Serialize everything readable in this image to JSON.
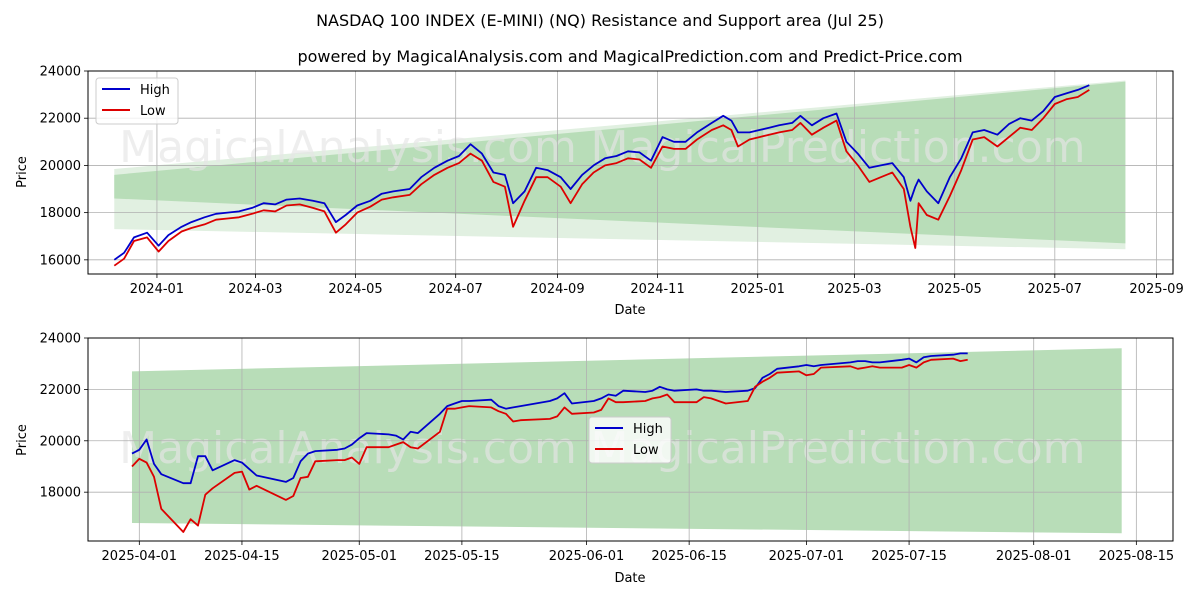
{
  "title": "NASDAQ 100 INDEX (E-MINI) (NQ) Resistance and Support area (Jul 25)",
  "subtitle": "powered by MagicalAnalysis.com and MagicalPrediction.com and Predict-Price.com",
  "watermarks": [
    "MagicalAnalysis.com",
    "MagicalPrediction.com"
  ],
  "colors": {
    "high": "#0000cc",
    "low": "#dd0000",
    "band_dark": "#b8ddb8",
    "band_light": "#e1f0e1",
    "grid": "#b0b0b0"
  },
  "chart_data": [
    {
      "type": "line",
      "xlabel": "Date",
      "ylabel": "Price",
      "ylim": [
        15400,
        24000
      ],
      "xlim": [
        "2023-11-20",
        "2025-09-11"
      ],
      "yticks": [
        16000,
        18000,
        20000,
        22000,
        24000
      ],
      "xticks": [
        "2024-01",
        "2024-03",
        "2024-05",
        "2024-07",
        "2024-09",
        "2024-11",
        "2025-01",
        "2025-03",
        "2025-05",
        "2025-07",
        "2025-09"
      ],
      "grid": true,
      "legend": "top-left",
      "legend_entries": [
        "High",
        "Low"
      ],
      "band_outer": {
        "start": "2023-12-06",
        "end": "2025-08-13",
        "upper": [
          19850,
          23600
        ],
        "lower": [
          17300,
          16450
        ]
      },
      "band_inner": {
        "start": "2023-12-06",
        "end": "2025-08-13",
        "upper": [
          19600,
          23550
        ],
        "lower": [
          18600,
          16700
        ]
      },
      "series": [
        {
          "name": "High",
          "x": [
            "2023-12-06",
            "2023-12-12",
            "2023-12-18",
            "2023-12-26",
            "2024-01-02",
            "2024-01-08",
            "2024-01-16",
            "2024-01-22",
            "2024-01-30",
            "2024-02-06",
            "2024-02-13",
            "2024-02-20",
            "2024-02-28",
            "2024-03-06",
            "2024-03-13",
            "2024-03-20",
            "2024-03-28",
            "2024-04-05",
            "2024-04-12",
            "2024-04-19",
            "2024-04-25",
            "2024-05-02",
            "2024-05-10",
            "2024-05-17",
            "2024-05-24",
            "2024-06-03",
            "2024-06-10",
            "2024-06-18",
            "2024-06-26",
            "2024-07-03",
            "2024-07-10",
            "2024-07-17",
            "2024-07-24",
            "2024-07-31",
            "2024-08-05",
            "2024-08-12",
            "2024-08-19",
            "2024-08-26",
            "2024-09-03",
            "2024-09-09",
            "2024-09-16",
            "2024-09-23",
            "2024-09-30",
            "2024-10-07",
            "2024-10-14",
            "2024-10-21",
            "2024-10-28",
            "2024-11-04",
            "2024-11-11",
            "2024-11-18",
            "2024-11-25",
            "2024-12-04",
            "2024-12-11",
            "2024-12-16",
            "2024-12-20",
            "2024-12-27",
            "2025-01-02",
            "2025-01-08",
            "2025-01-14",
            "2025-01-22",
            "2025-01-27",
            "2025-02-03",
            "2025-02-10",
            "2025-02-18",
            "2025-02-24",
            "2025-03-03",
            "2025-03-10",
            "2025-03-17",
            "2025-03-24",
            "2025-03-31",
            "2025-04-04",
            "2025-04-07",
            "2025-04-09",
            "2025-04-14",
            "2025-04-21",
            "2025-04-28",
            "2025-05-05",
            "2025-05-12",
            "2025-05-19",
            "2025-05-27",
            "2025-06-03",
            "2025-06-10",
            "2025-06-17",
            "2025-06-24",
            "2025-07-01",
            "2025-07-08",
            "2025-07-15",
            "2025-07-22"
          ],
          "values": [
            16000,
            16300,
            16950,
            17150,
            16600,
            17050,
            17400,
            17600,
            17800,
            17950,
            18000,
            18050,
            18200,
            18400,
            18350,
            18550,
            18600,
            18500,
            18400,
            17600,
            17900,
            18300,
            18500,
            18800,
            18900,
            19000,
            19500,
            19900,
            20200,
            20400,
            20900,
            20500,
            19700,
            19600,
            18400,
            18900,
            19900,
            19800,
            19500,
            19000,
            19600,
            20000,
            20300,
            20400,
            20600,
            20550,
            20200,
            21200,
            21000,
            21000,
            21400,
            21800,
            22100,
            21900,
            21400,
            21400,
            21500,
            21600,
            21700,
            21800,
            22100,
            21700,
            22000,
            22200,
            21000,
            20500,
            19900,
            20000,
            20100,
            19500,
            18500,
            19100,
            19400,
            18900,
            18400,
            19500,
            20300,
            21400,
            21500,
            21300,
            21750,
            22000,
            21900,
            22300,
            22900,
            23050,
            23200,
            23400
          ]
        },
        {
          "name": "Low",
          "x": [
            "2023-12-06",
            "2023-12-12",
            "2023-12-18",
            "2023-12-26",
            "2024-01-02",
            "2024-01-08",
            "2024-01-16",
            "2024-01-22",
            "2024-01-30",
            "2024-02-06",
            "2024-02-13",
            "2024-02-20",
            "2024-02-28",
            "2024-03-06",
            "2024-03-13",
            "2024-03-20",
            "2024-03-28",
            "2024-04-05",
            "2024-04-12",
            "2024-04-19",
            "2024-04-25",
            "2024-05-02",
            "2024-05-10",
            "2024-05-17",
            "2024-05-24",
            "2024-06-03",
            "2024-06-10",
            "2024-06-18",
            "2024-06-26",
            "2024-07-03",
            "2024-07-10",
            "2024-07-17",
            "2024-07-24",
            "2024-07-31",
            "2024-08-05",
            "2024-08-12",
            "2024-08-19",
            "2024-08-26",
            "2024-09-03",
            "2024-09-09",
            "2024-09-16",
            "2024-09-23",
            "2024-09-30",
            "2024-10-07",
            "2024-10-14",
            "2024-10-21",
            "2024-10-28",
            "2024-11-04",
            "2024-11-11",
            "2024-11-18",
            "2024-11-25",
            "2024-12-04",
            "2024-12-11",
            "2024-12-16",
            "2024-12-20",
            "2024-12-27",
            "2025-01-02",
            "2025-01-08",
            "2025-01-14",
            "2025-01-22",
            "2025-01-27",
            "2025-02-03",
            "2025-02-10",
            "2025-02-18",
            "2025-02-24",
            "2025-03-03",
            "2025-03-10",
            "2025-03-17",
            "2025-03-24",
            "2025-03-31",
            "2025-04-04",
            "2025-04-07",
            "2025-04-09",
            "2025-04-14",
            "2025-04-21",
            "2025-04-28",
            "2025-05-05",
            "2025-05-12",
            "2025-05-19",
            "2025-05-27",
            "2025-06-03",
            "2025-06-10",
            "2025-06-17",
            "2025-06-24",
            "2025-07-01",
            "2025-07-08",
            "2025-07-15",
            "2025-07-22"
          ],
          "values": [
            15750,
            16050,
            16800,
            16950,
            16350,
            16800,
            17200,
            17350,
            17500,
            17700,
            17750,
            17800,
            17950,
            18100,
            18050,
            18300,
            18350,
            18200,
            18050,
            17150,
            17500,
            18000,
            18250,
            18550,
            18650,
            18750,
            19200,
            19600,
            19900,
            20100,
            20500,
            20200,
            19300,
            19100,
            17400,
            18500,
            19500,
            19500,
            19100,
            18400,
            19200,
            19700,
            20000,
            20100,
            20300,
            20250,
            19900,
            20800,
            20700,
            20700,
            21100,
            21500,
            21700,
            21500,
            20800,
            21100,
            21200,
            21300,
            21400,
            21500,
            21800,
            21300,
            21600,
            21900,
            20600,
            20000,
            19300,
            19500,
            19700,
            19000,
            17400,
            16500,
            18400,
            17900,
            17700,
            18700,
            19800,
            21100,
            21200,
            20800,
            21200,
            21600,
            21500,
            22000,
            22600,
            22800,
            22900,
            23200
          ]
        }
      ]
    },
    {
      "type": "line",
      "xlabel": "Date",
      "ylabel": "Price",
      "ylim": [
        16100,
        24000
      ],
      "xlim": [
        "2025-03-25",
        "2025-08-20"
      ],
      "yticks": [
        18000,
        20000,
        22000,
        24000
      ],
      "xticks": [
        "2025-04-01",
        "2025-04-15",
        "2025-05-01",
        "2025-05-15",
        "2025-06-01",
        "2025-06-15",
        "2025-07-01",
        "2025-07-15",
        "2025-08-01",
        "2025-08-15"
      ],
      "grid": true,
      "legend": "center",
      "legend_entries": [
        "High",
        "Low"
      ],
      "band": {
        "start": "2025-03-31",
        "end": "2025-08-13",
        "upper": [
          22700,
          23600
        ],
        "lower": [
          16800,
          16400
        ]
      },
      "series": [
        {
          "name": "High",
          "x": [
            "2025-03-31",
            "2025-04-01",
            "2025-04-02",
            "2025-04-03",
            "2025-04-04",
            "2025-04-07",
            "2025-04-08",
            "2025-04-09",
            "2025-04-10",
            "2025-04-11",
            "2025-04-14",
            "2025-04-15",
            "2025-04-16",
            "2025-04-17",
            "2025-04-21",
            "2025-04-22",
            "2025-04-23",
            "2025-04-24",
            "2025-04-25",
            "2025-04-28",
            "2025-04-29",
            "2025-04-30",
            "2025-05-01",
            "2025-05-02",
            "2025-05-05",
            "2025-05-06",
            "2025-05-07",
            "2025-05-08",
            "2025-05-09",
            "2025-05-12",
            "2025-05-13",
            "2025-05-14",
            "2025-05-15",
            "2025-05-16",
            "2025-05-19",
            "2025-05-20",
            "2025-05-21",
            "2025-05-22",
            "2025-05-23",
            "2025-05-27",
            "2025-05-28",
            "2025-05-29",
            "2025-05-30",
            "2025-06-02",
            "2025-06-03",
            "2025-06-04",
            "2025-06-05",
            "2025-06-06",
            "2025-06-09",
            "2025-06-10",
            "2025-06-11",
            "2025-06-12",
            "2025-06-13",
            "2025-06-16",
            "2025-06-17",
            "2025-06-18",
            "2025-06-20",
            "2025-06-23",
            "2025-06-24",
            "2025-06-25",
            "2025-06-26",
            "2025-06-27",
            "2025-06-30",
            "2025-07-01",
            "2025-07-02",
            "2025-07-03",
            "2025-07-07",
            "2025-07-08",
            "2025-07-09",
            "2025-07-10",
            "2025-07-11",
            "2025-07-14",
            "2025-07-15",
            "2025-07-16",
            "2025-07-17",
            "2025-07-18",
            "2025-07-21",
            "2025-07-22",
            "2025-07-23"
          ],
          "values": [
            19500,
            19650,
            20050,
            19100,
            18700,
            18350,
            18350,
            19400,
            19400,
            18850,
            19250,
            19150,
            18900,
            18650,
            18400,
            18550,
            19200,
            19500,
            19600,
            19650,
            19700,
            19850,
            20100,
            20300,
            20250,
            20200,
            20050,
            20350,
            20300,
            21050,
            21350,
            21450,
            21550,
            21550,
            21600,
            21350,
            21250,
            21300,
            21350,
            21550,
            21650,
            21850,
            21450,
            21550,
            21650,
            21800,
            21750,
            21950,
            21900,
            21950,
            22100,
            22000,
            21950,
            22000,
            21950,
            21950,
            21900,
            21950,
            22050,
            22450,
            22600,
            22800,
            22900,
            22950,
            22900,
            22950,
            23050,
            23100,
            23100,
            23050,
            23050,
            23150,
            23200,
            23050,
            23250,
            23300,
            23350,
            23400,
            23400
          ]
        },
        {
          "name": "Low",
          "x": [
            "2025-03-31",
            "2025-04-01",
            "2025-04-02",
            "2025-04-03",
            "2025-04-04",
            "2025-04-07",
            "2025-04-08",
            "2025-04-09",
            "2025-04-10",
            "2025-04-11",
            "2025-04-14",
            "2025-04-15",
            "2025-04-16",
            "2025-04-17",
            "2025-04-21",
            "2025-04-22",
            "2025-04-23",
            "2025-04-24",
            "2025-04-25",
            "2025-04-28",
            "2025-04-29",
            "2025-04-30",
            "2025-05-01",
            "2025-05-02",
            "2025-05-05",
            "2025-05-06",
            "2025-05-07",
            "2025-05-08",
            "2025-05-09",
            "2025-05-12",
            "2025-05-13",
            "2025-05-14",
            "2025-05-15",
            "2025-05-16",
            "2025-05-19",
            "2025-05-20",
            "2025-05-21",
            "2025-05-22",
            "2025-05-23",
            "2025-05-27",
            "2025-05-28",
            "2025-05-29",
            "2025-05-30",
            "2025-06-02",
            "2025-06-03",
            "2025-06-04",
            "2025-06-05",
            "2025-06-06",
            "2025-06-09",
            "2025-06-10",
            "2025-06-11",
            "2025-06-12",
            "2025-06-13",
            "2025-06-16",
            "2025-06-17",
            "2025-06-18",
            "2025-06-20",
            "2025-06-23",
            "2025-06-24",
            "2025-06-25",
            "2025-06-26",
            "2025-06-27",
            "2025-06-30",
            "2025-07-01",
            "2025-07-02",
            "2025-07-03",
            "2025-07-07",
            "2025-07-08",
            "2025-07-09",
            "2025-07-10",
            "2025-07-11",
            "2025-07-14",
            "2025-07-15",
            "2025-07-16",
            "2025-07-17",
            "2025-07-18",
            "2025-07-21",
            "2025-07-22",
            "2025-07-23"
          ],
          "values": [
            19000,
            19300,
            19150,
            18600,
            17350,
            16450,
            16950,
            16700,
            17900,
            18150,
            18750,
            18800,
            18100,
            18250,
            17700,
            17850,
            18550,
            18600,
            19200,
            19250,
            19250,
            19350,
            19100,
            19750,
            19750,
            19850,
            19950,
            19750,
            19700,
            20350,
            21250,
            21250,
            21300,
            21350,
            21300,
            21150,
            21050,
            20750,
            20800,
            20850,
            20950,
            21300,
            21050,
            21100,
            21200,
            21650,
            21500,
            21500,
            21550,
            21650,
            21700,
            21800,
            21500,
            21500,
            21700,
            21650,
            21450,
            21550,
            22100,
            22300,
            22450,
            22650,
            22700,
            22550,
            22600,
            22850,
            22900,
            22800,
            22850,
            22900,
            22850,
            22850,
            22950,
            22850,
            23050,
            23150,
            23200,
            23100,
            23150
          ]
        }
      ]
    }
  ]
}
